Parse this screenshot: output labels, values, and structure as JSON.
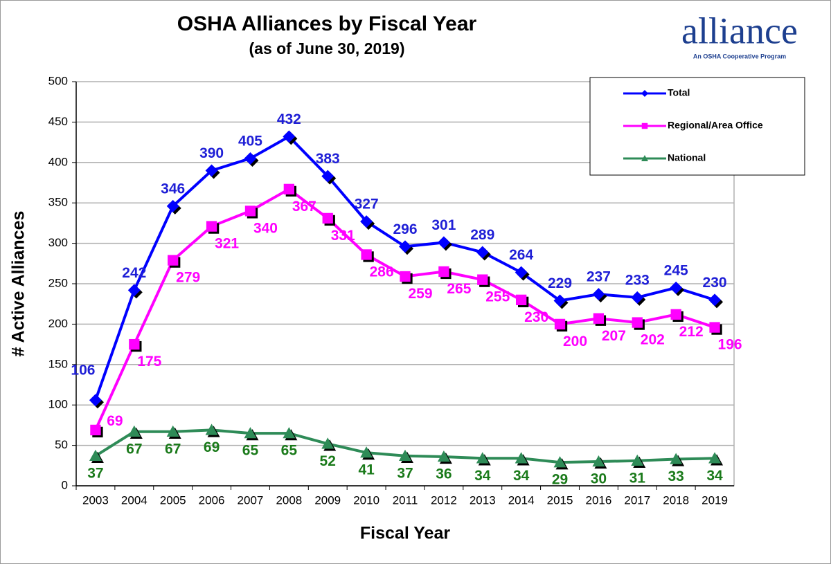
{
  "chart_data": {
    "type": "line",
    "title": "OSHA Alliances by Fiscal Year",
    "subtitle": "(as of June 30, 2019)",
    "y_label": "# Active Alliances",
    "x_label": "Fiscal Year",
    "categories": [
      "2003",
      "2004",
      "2005",
      "2006",
      "2007",
      "2008",
      "2009",
      "2010",
      "2011",
      "2012",
      "2013",
      "2014",
      "2015",
      "2016",
      "2017",
      "2018",
      "2019"
    ],
    "series": [
      {
        "name": "Total",
        "color": "#0000ff",
        "label_color": "#1f1fd6",
        "marker": "diamond",
        "values": [
          106,
          242,
          346,
          390,
          405,
          432,
          383,
          327,
          296,
          301,
          289,
          264,
          229,
          237,
          233,
          245,
          230
        ]
      },
      {
        "name": "Regional/Area Office",
        "color": "#ff00ff",
        "label_color": "#ff00ff",
        "marker": "square",
        "values": [
          69,
          175,
          279,
          321,
          340,
          367,
          331,
          286,
          259,
          265,
          255,
          230,
          200,
          207,
          202,
          212,
          196
        ]
      },
      {
        "name": "National",
        "color": "#2e8b57",
        "label_color": "#1a7a1a",
        "marker": "triangle",
        "values": [
          37,
          67,
          67,
          69,
          65,
          65,
          52,
          41,
          37,
          36,
          34,
          34,
          29,
          30,
          31,
          33,
          34
        ]
      }
    ],
    "ylim": [
      0,
      500
    ],
    "yticks": [
      0,
      50,
      100,
      150,
      200,
      250,
      300,
      350,
      400,
      450,
      500
    ],
    "grid": true,
    "legend": "upper right"
  },
  "logo": {
    "text": "alliance",
    "tagline": "An OSHA Cooperative Program"
  }
}
